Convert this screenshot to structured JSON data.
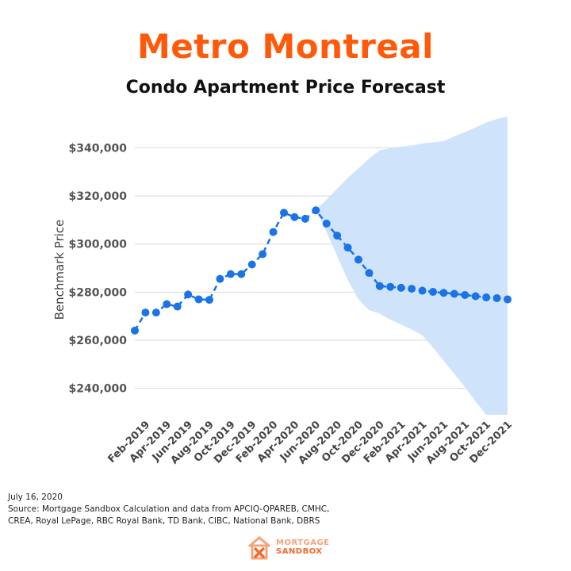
{
  "colors": {
    "title": "#ff5a0a",
    "line": "#1a73e8",
    "band": "#cfe4fb",
    "grid": "#d9d9d9",
    "logo_orange": "#f26a2e"
  },
  "footer": {
    "date": "July 16, 2020",
    "source_line1": "Source: Mortgage Sandbox Calculation and data from APCIQ-QPAREB, CMHC,",
    "source_line2": "CREA, Royal LePage, RBC Royal Bank, TD Bank, CIBC, National Bank, DBRS"
  },
  "logo": {
    "line1": "MORTGAGE",
    "line2": "SANDBOX",
    "icon": "house-x-logo-icon"
  },
  "chart_data": {
    "type": "line",
    "title": "Metro Montreal",
    "subtitle": "Condo Apartment Price Forecast",
    "ylabel": "Benchmark Price",
    "xlabel": "",
    "ylim": [
      230000,
      352000
    ],
    "yticks": [
      240000,
      260000,
      280000,
      300000,
      320000,
      340000
    ],
    "ytick_labels": [
      "$240,000",
      "$260,000",
      "$280,000",
      "$300,000",
      "$320,000",
      "$340,000"
    ],
    "grid": "horizontal",
    "x": [
      "Jan-2019",
      "Feb-2019",
      "Mar-2019",
      "Apr-2019",
      "May-2019",
      "Jun-2019",
      "Jul-2019",
      "Aug-2019",
      "Sep-2019",
      "Oct-2019",
      "Nov-2019",
      "Dec-2019",
      "Jan-2020",
      "Feb-2020",
      "Mar-2020",
      "Apr-2020",
      "May-2020",
      "Jun-2020",
      "Jul-2020",
      "Aug-2020",
      "Sep-2020",
      "Oct-2020",
      "Nov-2020",
      "Dec-2020",
      "Jan-2021",
      "Feb-2021",
      "Mar-2021",
      "Apr-2021",
      "May-2021",
      "Jun-2021",
      "Jul-2021",
      "Aug-2021",
      "Sep-2021",
      "Oct-2021",
      "Nov-2021",
      "Dec-2021"
    ],
    "xtick_labels": [
      "Feb-2019",
      "Apr-2019",
      "Jun-2019",
      "Aug-2019",
      "Oct-2019",
      "Dec-2019",
      "Feb-2020",
      "Apr-2020",
      "Jun-2020",
      "Aug-2020",
      "Oct-2020",
      "Dec-2020",
      "Feb-2021",
      "Apr-2021",
      "Jun-2021",
      "Aug-2021",
      "Oct-2021",
      "Dec-2021"
    ],
    "series": [
      {
        "values": [
          264000,
          271500,
          271500,
          275000,
          274000,
          279000,
          277000,
          276800,
          285500,
          287500,
          287500,
          291500,
          295800,
          305000,
          313000,
          311200,
          310500,
          314000,
          308500,
          303500,
          298500,
          293500,
          288000,
          282500,
          282200,
          281800,
          281400,
          280600,
          280100,
          279700,
          279300,
          278800,
          278300,
          277800,
          277500,
          277000
        ]
      }
    ],
    "band": {
      "start_index": 17,
      "upper": [
        314000,
        318500,
        323000,
        327500,
        331500,
        335500,
        339000,
        339800,
        340500,
        341000,
        341800,
        342300,
        342800,
        344800,
        346500,
        348500,
        350500,
        352000,
        353000
      ],
      "lower": [
        314000,
        305000,
        295000,
        285000,
        277000,
        272500,
        271000,
        268500,
        266500,
        264500,
        262000,
        257000,
        251500,
        246000,
        240500,
        234500,
        229000,
        229000,
        229000
      ]
    }
  }
}
